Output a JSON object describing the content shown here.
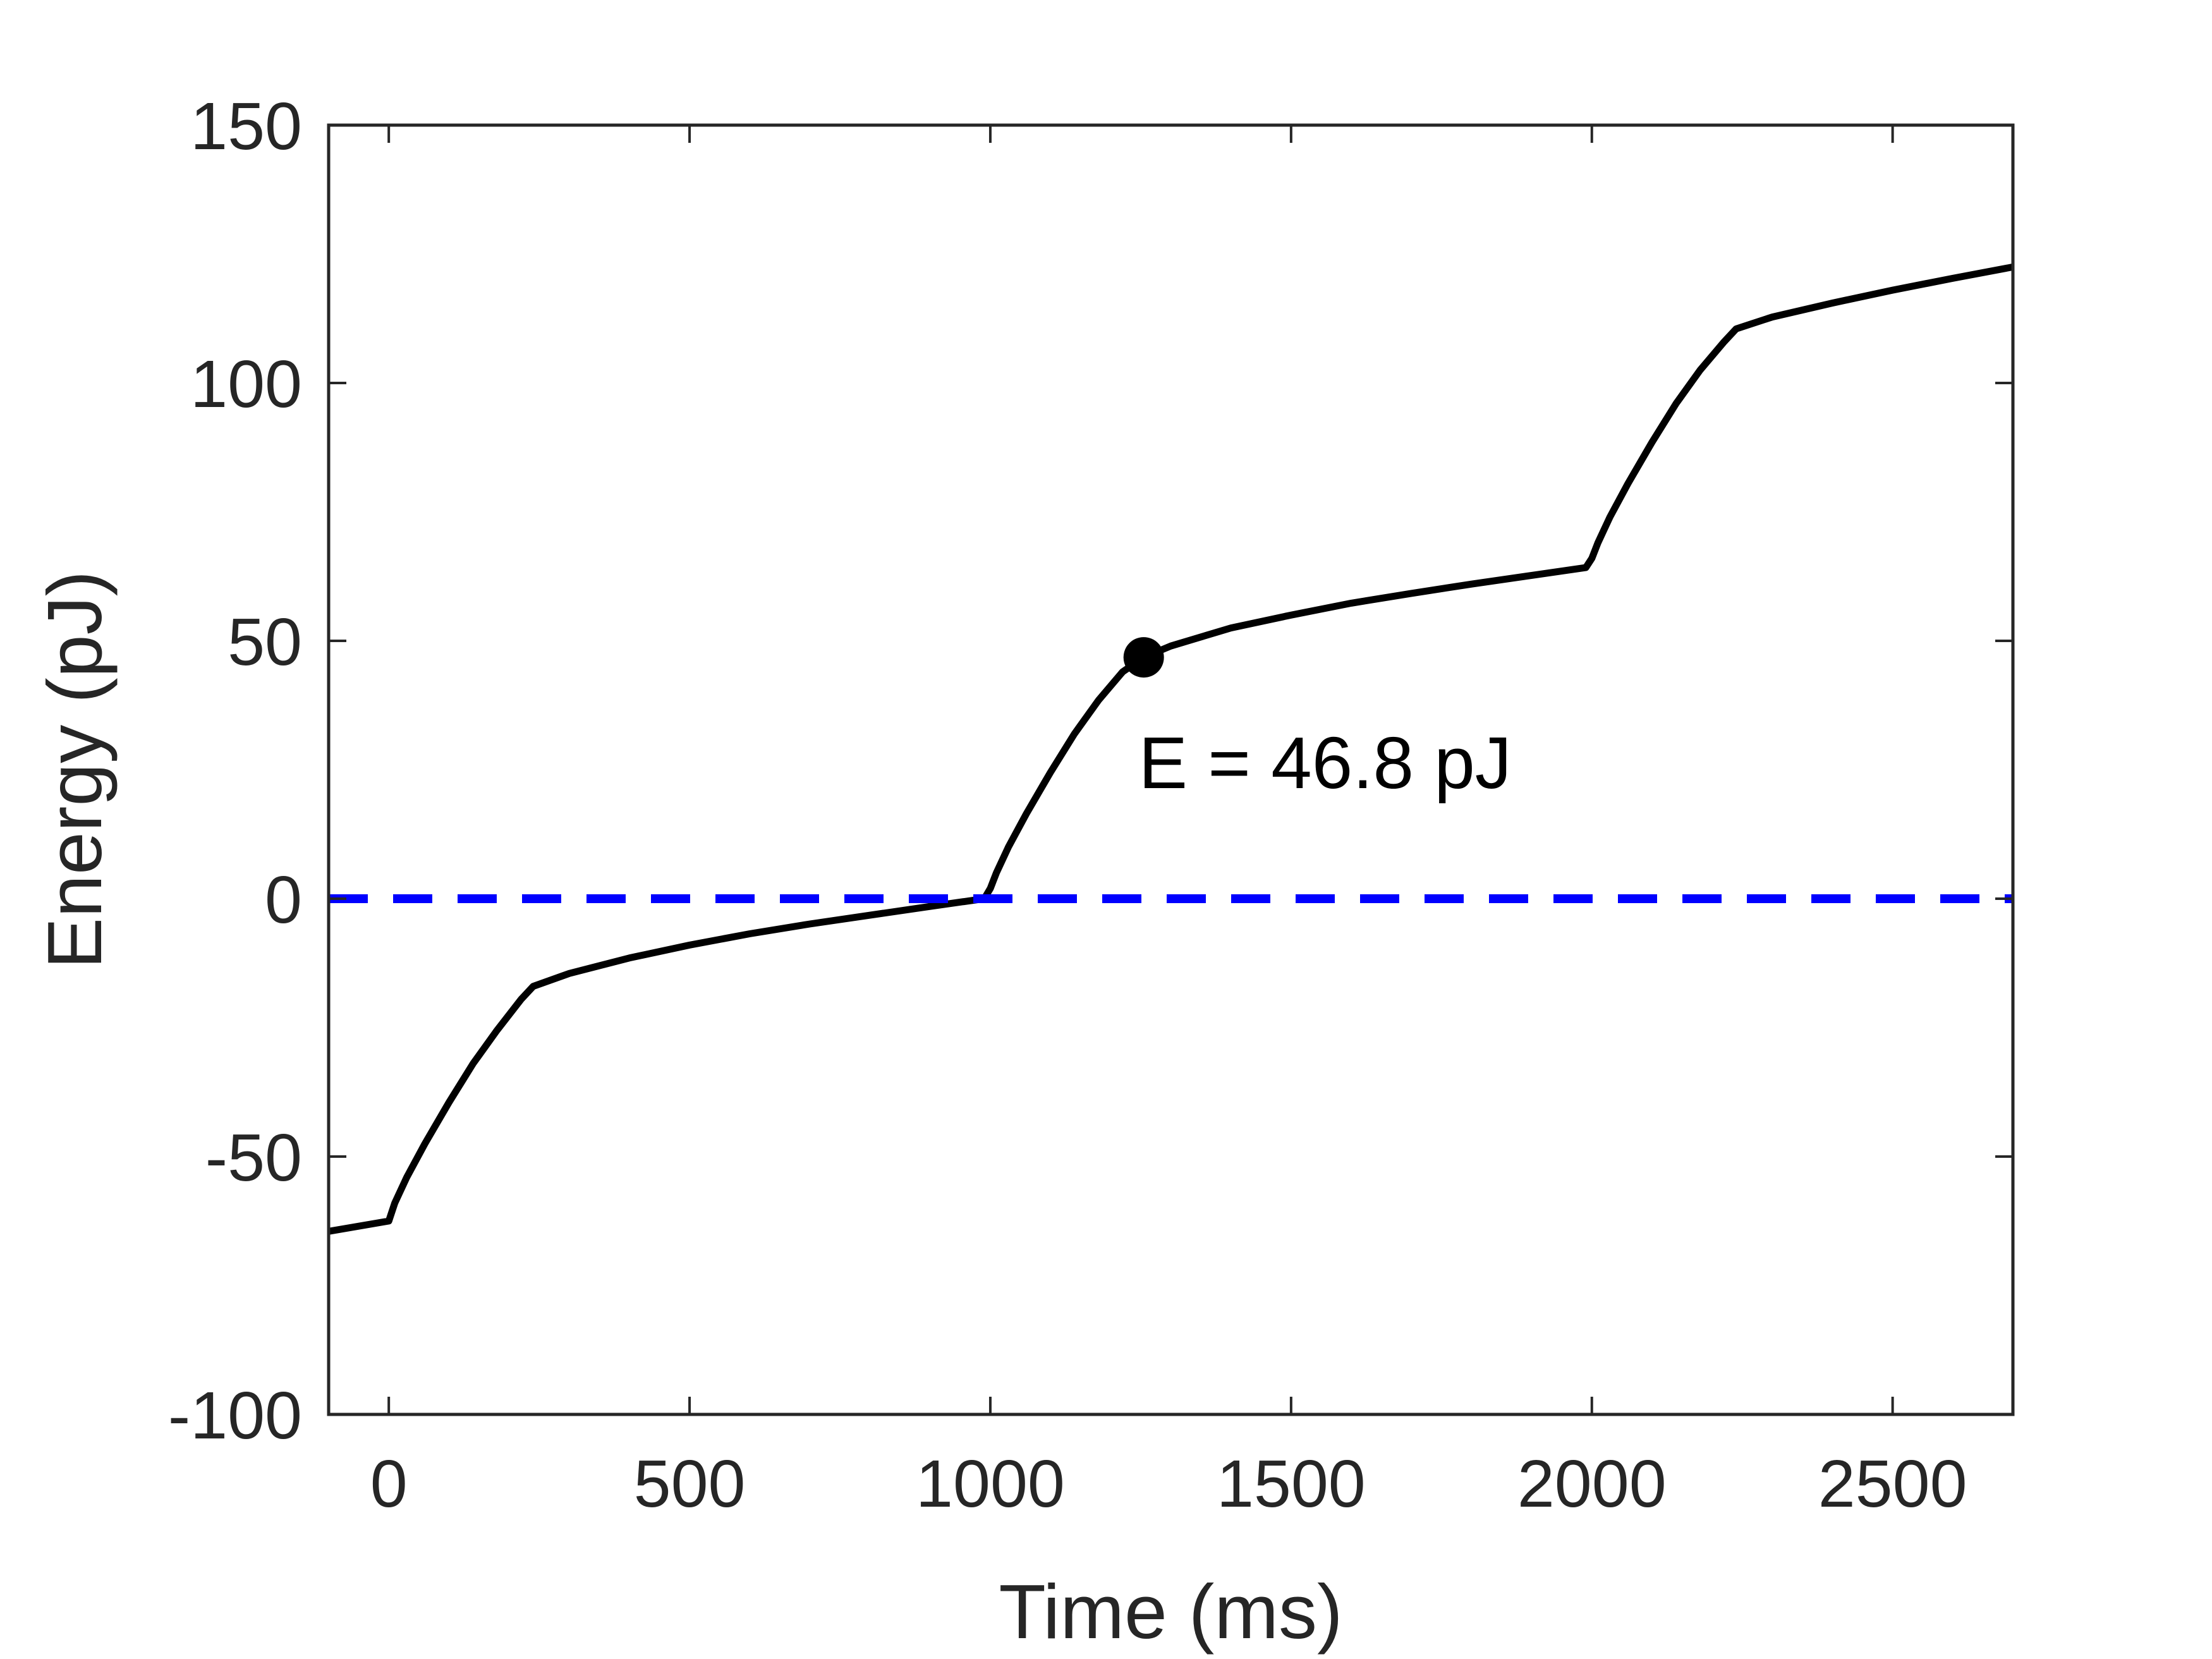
{
  "chart_data": {
    "type": "line",
    "title": "",
    "xlabel": "Time (ms)",
    "ylabel": "Energy (pJ)",
    "xlim": [
      -100,
      2700
    ],
    "ylim": [
      -100,
      150
    ],
    "xticks": [
      0,
      500,
      1000,
      1500,
      2000,
      2500
    ],
    "yticks": [
      -100,
      -50,
      0,
      50,
      100,
      150
    ],
    "grid": false,
    "legend": "none",
    "colors": {
      "energy_line": "#000000",
      "reference_line": "#0000ff",
      "axis": "#262626",
      "background": "#ffffff"
    },
    "series": [
      {
        "style": "solid",
        "color": "#000000",
        "points": [
          [
            -100,
            -64.5
          ],
          [
            0,
            -62.5
          ],
          [
            10,
            -59
          ],
          [
            30,
            -54
          ],
          [
            60,
            -47.5
          ],
          [
            100,
            -39.5
          ],
          [
            140,
            -32
          ],
          [
            180,
            -25.5
          ],
          [
            220,
            -19.5
          ],
          [
            240,
            -17
          ],
          [
            300,
            -14.5
          ],
          [
            400,
            -11.5
          ],
          [
            500,
            -9
          ],
          [
            600,
            -6.8
          ],
          [
            700,
            -4.9
          ],
          [
            800,
            -3.2
          ],
          [
            900,
            -1.5
          ],
          [
            990,
            0
          ],
          [
            1000,
            2
          ],
          [
            1010,
            5
          ],
          [
            1030,
            10
          ],
          [
            1060,
            16.5
          ],
          [
            1100,
            24.5
          ],
          [
            1140,
            32
          ],
          [
            1180,
            38.5
          ],
          [
            1220,
            44
          ],
          [
            1255,
            46.8
          ],
          [
            1300,
            49
          ],
          [
            1400,
            52.5
          ],
          [
            1500,
            55
          ],
          [
            1600,
            57.3
          ],
          [
            1700,
            59.2
          ],
          [
            1800,
            61
          ],
          [
            1900,
            62.7
          ],
          [
            1990,
            64.2
          ],
          [
            2000,
            66
          ],
          [
            2010,
            69
          ],
          [
            2030,
            74
          ],
          [
            2060,
            80.5
          ],
          [
            2100,
            88.5
          ],
          [
            2140,
            96
          ],
          [
            2180,
            102.5
          ],
          [
            2220,
            108
          ],
          [
            2240,
            110.5
          ],
          [
            2300,
            112.8
          ],
          [
            2400,
            115.5
          ],
          [
            2500,
            118
          ],
          [
            2600,
            120.3
          ],
          [
            2700,
            122.5
          ]
        ]
      },
      {
        "style": "dashed",
        "color": "#0000ff",
        "points": [
          [
            -100,
            0
          ],
          [
            2700,
            0
          ]
        ]
      }
    ],
    "annotations": [
      {
        "text": "E = 46.8 pJ",
        "marker": [
          1255,
          46.8
        ]
      }
    ]
  }
}
